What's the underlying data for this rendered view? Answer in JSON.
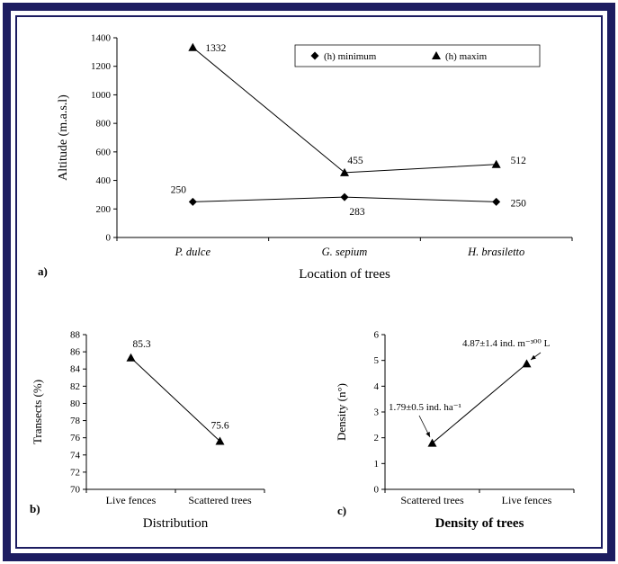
{
  "frame": {
    "border_color": "#1c1c60",
    "background": "#ffffff"
  },
  "panels": {
    "a": {
      "label": "a)"
    },
    "b": {
      "label": "b)"
    },
    "c": {
      "label": "c)"
    }
  },
  "chart_data": [
    {
      "id": "a",
      "type": "line",
      "categories": [
        "P. dulce",
        "G. sepium",
        "H. brasiletto"
      ],
      "series": [
        {
          "name": "(h) minimum",
          "marker": "diamond",
          "values": [
            250,
            283,
            250
          ],
          "data_labels": [
            "250",
            "283",
            "250"
          ]
        },
        {
          "name": "(h) maxim",
          "marker": "triangle",
          "values": [
            1332,
            455,
            512
          ],
          "data_labels": [
            "1332",
            "455",
            "512"
          ]
        }
      ],
      "xlabel": "Location of trees",
      "ylabel": "Altitude (m.a.s.l)",
      "ylim": [
        0,
        1400
      ],
      "ytick_step": 200,
      "grid": false,
      "legend_position": "inside-top-right"
    },
    {
      "id": "b",
      "type": "line",
      "categories": [
        "Live fences",
        "Scattered trees"
      ],
      "series": [
        {
          "name": "",
          "marker": "triangle",
          "values": [
            85.3,
            75.6
          ],
          "data_labels": [
            "85.3",
            "75.6"
          ]
        }
      ],
      "xlabel": "Distribution",
      "ylabel": "Transects (%)",
      "ylim": [
        70,
        88
      ],
      "ytick_step": 2,
      "grid": false
    },
    {
      "id": "c",
      "type": "line",
      "categories": [
        "Scattered trees",
        "Live fences"
      ],
      "series": [
        {
          "name": "",
          "marker": "triangle",
          "values": [
            1.79,
            4.87
          ],
          "data_labels": [
            "1.79±0.5 ind. ha⁻¹",
            "4.87±1.4 ind. m⁻³⁰⁰ L"
          ]
        }
      ],
      "xlabel": "Density of trees",
      "ylabel": "Density (n°)",
      "ylim": [
        0,
        6
      ],
      "ytick_step": 1,
      "grid": false
    }
  ]
}
